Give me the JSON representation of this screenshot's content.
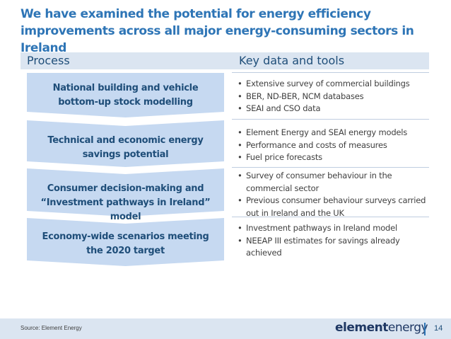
{
  "title": "We have examined the potential for energy efficiency improvements across all major energy-consuming sectors in Ireland",
  "headers": {
    "process": "Process",
    "key_data": "Key data and tools"
  },
  "rows": [
    {
      "step": "National building and vehicle bottom-up stock modelling",
      "bullets": [
        "Extensive survey of commercial buildings",
        "BER, ND-BER, NCM databases",
        "SEAI and CSO data"
      ]
    },
    {
      "step": "Technical and economic energy savings potential",
      "bullets": [
        "Element Energy and SEAI energy models",
        "Performance and costs of measures",
        "Fuel price forecasts"
      ]
    },
    {
      "step": "Consumer decision-making and “Investment pathways in Ireland” model",
      "bullets": [
        "Survey of consumer behaviour in the commercial sector",
        "Previous consumer behaviour surveys carried out in Ireland and the UK"
      ]
    },
    {
      "step": "Economy-wide scenarios meeting the 2020 target",
      "bullets": [
        "Investment pathways in Ireland model",
        "NEEAP III estimates for savings already achieved"
      ]
    }
  ],
  "footer": {
    "source": "Source: Element Energy",
    "logo_a": "element",
    "logo_b": "energy",
    "page": "14"
  },
  "colors": {
    "title": "#2e75b6",
    "chevron": "#c6d9f1",
    "chevron_text": "#1f4e79",
    "header_bar": "#dbe5f1"
  }
}
